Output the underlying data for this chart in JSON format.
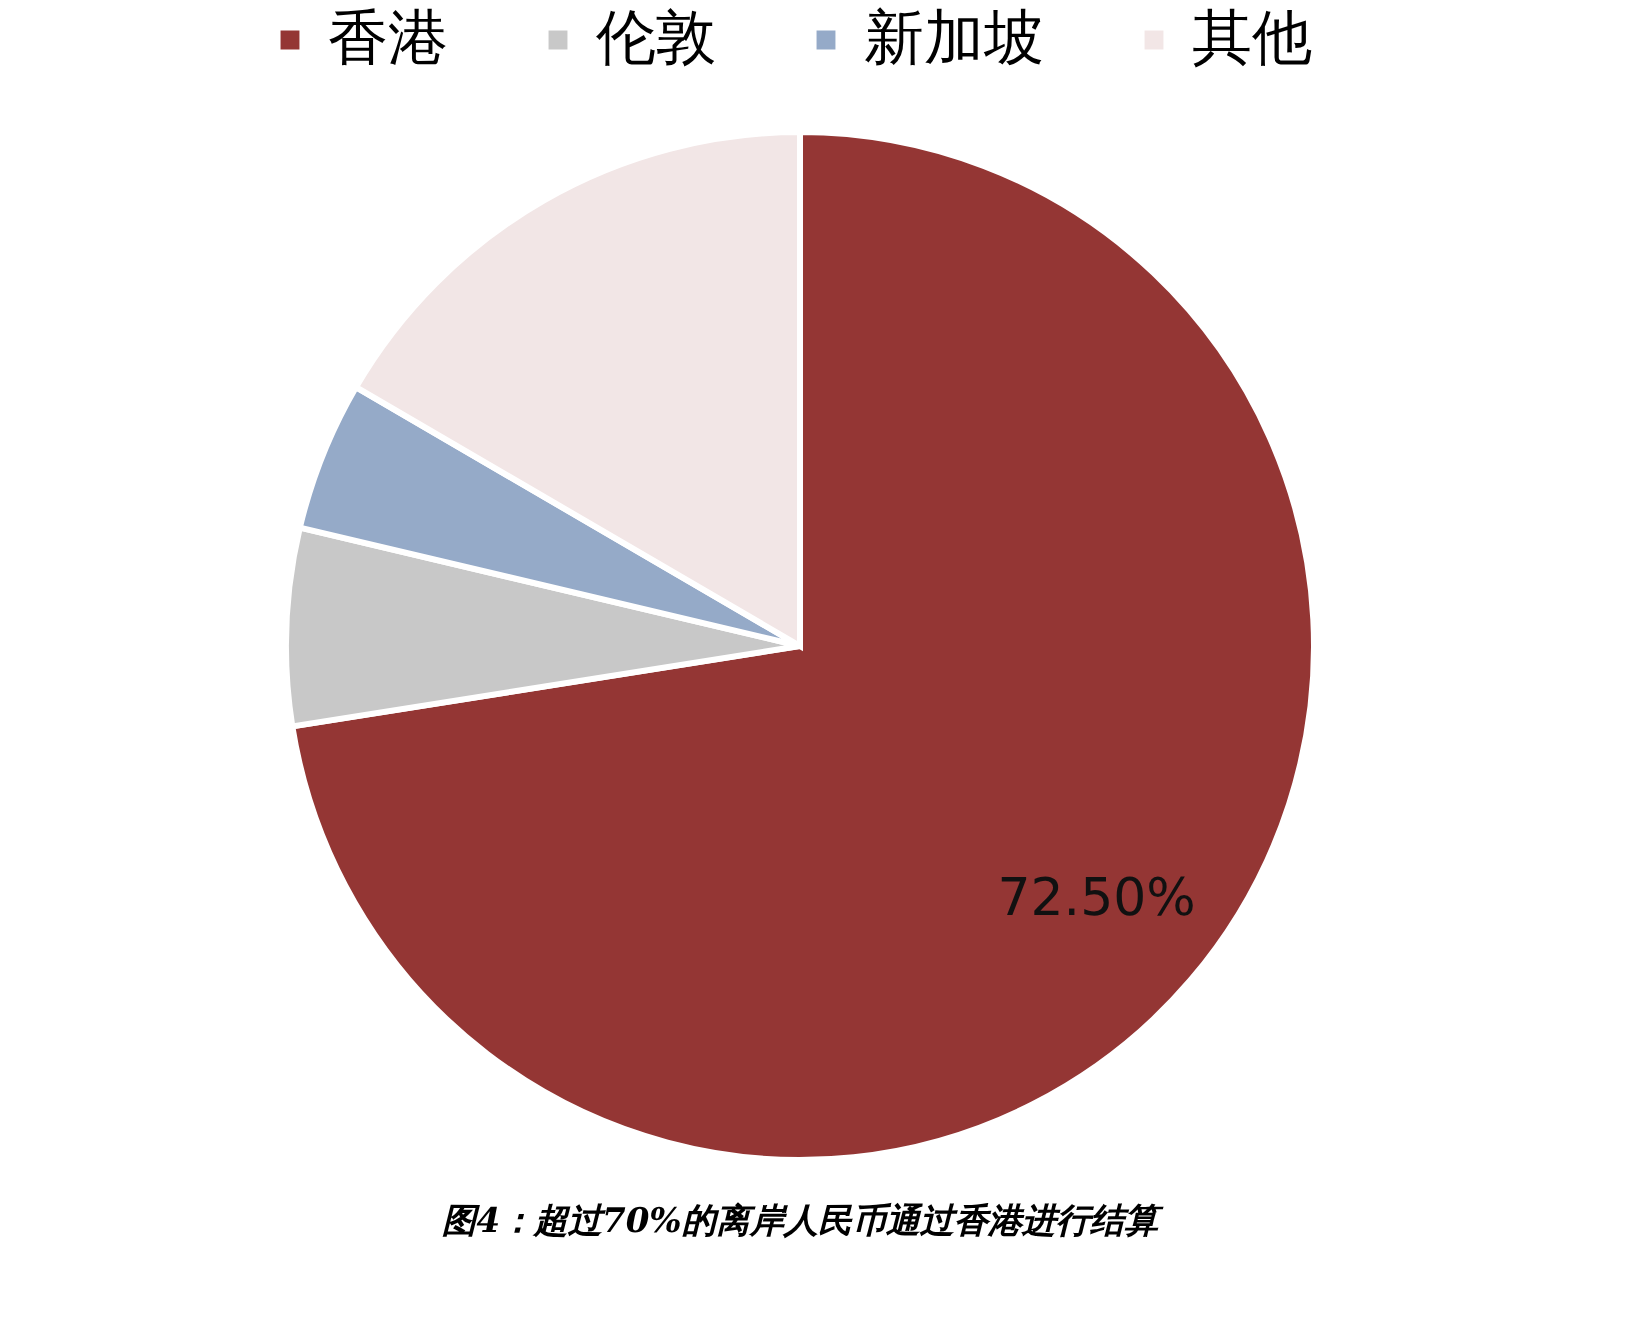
{
  "chart_data": {
    "type": "pie",
    "categories": [
      "香港",
      "伦敦",
      "新加坡",
      "其他"
    ],
    "values": [
      72.5,
      6.2,
      4.7,
      16.6
    ],
    "colors": [
      "#943634",
      "#c8c8c8",
      "#95aac8",
      "#f2e6e6"
    ],
    "value_labels": [
      "72.50%",
      null,
      null,
      null
    ],
    "legend": "top",
    "annotations": [
      "图4：超过70%的离岸人民币通过香港进行结算"
    ]
  }
}
